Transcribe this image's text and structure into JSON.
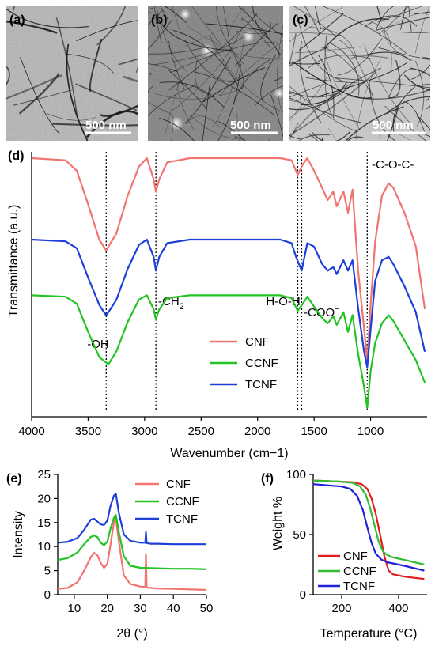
{
  "figure": {
    "panels": {
      "a": {
        "label": "(a)",
        "scale_bar": "500 nm"
      },
      "b": {
        "label": "(b)",
        "scale_bar": "500 nm"
      },
      "c": {
        "label": "(c)",
        "scale_bar": "500 nm"
      },
      "d": {
        "label": "(d)"
      },
      "e": {
        "label": "(e)"
      },
      "f": {
        "label": "(f)"
      }
    },
    "colors": {
      "CNF": "#f07470",
      "CCNF": "#22c322",
      "TCNF": "#1e3fd8",
      "CNF_f": "#e51c1c",
      "CCNF_f": "#33bb33",
      "TCNF_f": "#2020dd"
    }
  },
  "chart_data": [
    {
      "type": "line",
      "panel": "d",
      "title": "",
      "xlabel": "Wavenumber (cm−1)",
      "ylabel": "Transmittance (a.u.)",
      "xlim": [
        4000,
        500
      ],
      "x_reversed": true,
      "xticks": [
        "4000",
        "3500",
        "3000",
        "2500",
        "2000",
        "1500",
        "1000"
      ],
      "legend": [
        "CNF",
        "CCNF",
        "TCNF"
      ],
      "legend_position": "bottom-center",
      "markers": [
        {
          "x": 3340,
          "label": "-OH"
        },
        {
          "x": 2900,
          "label": "-CH",
          "sub": "2"
        },
        {
          "x": 1645,
          "label": "H-O-H"
        },
        {
          "x": 1610,
          "label": "-COO",
          "sup": "−"
        },
        {
          "x": 1030,
          "label": "-C-O-C-"
        }
      ],
      "series": [
        {
          "name": "CNF",
          "x": [
            4000,
            3700,
            3600,
            3500,
            3400,
            3340,
            3250,
            3150,
            3050,
            2980,
            2920,
            2900,
            2870,
            2800,
            2600,
            2200,
            1800,
            1700,
            1645,
            1600,
            1560,
            1500,
            1430,
            1380,
            1330,
            1300,
            1240,
            1200,
            1160,
            1110,
            1060,
            1030,
            1000,
            960,
            900,
            840,
            800,
            700,
            600,
            520
          ],
          "y": [
            0.0,
            0.01,
            0.06,
            0.22,
            0.39,
            0.44,
            0.36,
            0.18,
            0.04,
            0.0,
            0.1,
            0.16,
            0.1,
            0.02,
            0.0,
            0.0,
            0.0,
            0.01,
            0.08,
            0.03,
            0.0,
            0.06,
            0.14,
            0.2,
            0.16,
            0.23,
            0.16,
            0.26,
            0.15,
            0.54,
            0.8,
            0.97,
            0.7,
            0.4,
            0.18,
            0.12,
            0.14,
            0.26,
            0.42,
            0.72
          ]
        },
        {
          "name": "TCNF",
          "x": [
            4000,
            3700,
            3600,
            3500,
            3400,
            3340,
            3250,
            3150,
            3050,
            2980,
            2920,
            2900,
            2870,
            2800,
            2600,
            2200,
            1800,
            1700,
            1660,
            1610,
            1560,
            1500,
            1430,
            1380,
            1330,
            1300,
            1240,
            1200,
            1160,
            1110,
            1060,
            1030,
            1000,
            960,
            900,
            840,
            800,
            700,
            600,
            520
          ],
          "y": [
            0.28,
            0.29,
            0.33,
            0.5,
            0.66,
            0.72,
            0.63,
            0.45,
            0.31,
            0.28,
            0.38,
            0.46,
            0.38,
            0.3,
            0.28,
            0.28,
            0.28,
            0.3,
            0.38,
            0.46,
            0.3,
            0.32,
            0.42,
            0.46,
            0.44,
            0.48,
            0.4,
            0.46,
            0.4,
            0.68,
            0.92,
            1.02,
            0.8,
            0.52,
            0.4,
            0.38,
            0.42,
            0.55,
            0.7,
            0.93
          ]
        },
        {
          "name": "CCNF",
          "x": [
            4000,
            3700,
            3600,
            3500,
            3400,
            3320,
            3250,
            3150,
            3050,
            2980,
            2920,
            2900,
            2870,
            2800,
            2600,
            2200,
            1800,
            1700,
            1645,
            1600,
            1560,
            1500,
            1430,
            1380,
            1330,
            1300,
            1240,
            1200,
            1160,
            1110,
            1060,
            1030,
            1000,
            960,
            900,
            840,
            800,
            700,
            600,
            520
          ],
          "y": [
            0.48,
            0.49,
            0.54,
            0.74,
            0.92,
            0.97,
            0.88,
            0.67,
            0.51,
            0.48,
            0.58,
            0.65,
            0.58,
            0.5,
            0.48,
            0.48,
            0.48,
            0.5,
            0.59,
            0.54,
            0.49,
            0.56,
            0.64,
            0.68,
            0.63,
            0.69,
            0.6,
            0.74,
            0.62,
            0.9,
            1.12,
            1.28,
            1.02,
            0.82,
            0.68,
            0.62,
            0.66,
            0.8,
            0.94,
            1.1
          ]
        }
      ]
    },
    {
      "type": "line",
      "panel": "e",
      "title": "",
      "xlabel": "2θ (°)",
      "ylabel": "Intensity",
      "xlim": [
        5,
        50
      ],
      "ylim": [
        0,
        25
      ],
      "xticks": [
        10,
        20,
        30,
        40,
        50
      ],
      "yticks": [
        0,
        5,
        10,
        15,
        20,
        25
      ],
      "legend": [
        "CNF",
        "CCNF",
        "TCNF"
      ],
      "legend_position": "top-right",
      "series": [
        {
          "name": "CNF",
          "x": [
            5,
            8,
            11,
            13,
            15,
            16,
            17,
            18,
            19,
            20,
            21,
            22,
            22.6,
            23.5,
            25,
            27,
            30,
            31.5,
            31.7,
            31.9,
            32.2,
            33,
            35,
            40,
            45,
            50
          ],
          "y": [
            1.2,
            1.4,
            2.6,
            5.0,
            7.8,
            8.7,
            8.2,
            6.6,
            5.6,
            6.4,
            10.5,
            15.0,
            16.0,
            11.0,
            4.0,
            2.2,
            1.7,
            1.6,
            8.5,
            1.6,
            1.5,
            1.4,
            1.3,
            1.2,
            1.1,
            1.0
          ]
        },
        {
          "name": "CCNF",
          "x": [
            5,
            8,
            11,
            13,
            15,
            16,
            17,
            18,
            19,
            20,
            21,
            22,
            22.6,
            23.5,
            25,
            27,
            30,
            35,
            40,
            45,
            50
          ],
          "y": [
            7.2,
            7.6,
            8.8,
            10.5,
            12.0,
            12.3,
            12.0,
            10.8,
            10.3,
            11.0,
            13.8,
            16.0,
            16.6,
            13.0,
            8.0,
            6.0,
            5.6,
            5.5,
            5.4,
            5.4,
            5.3
          ]
        },
        {
          "name": "TCNF",
          "x": [
            5,
            8,
            11,
            13,
            15,
            16,
            17,
            18,
            19,
            20,
            21,
            22,
            22.6,
            23.5,
            25,
            27,
            30,
            31.5,
            31.7,
            31.9,
            32.2,
            33,
            35,
            40,
            45,
            50
          ],
          "y": [
            10.8,
            11.0,
            11.8,
            13.5,
            15.6,
            15.8,
            15.2,
            14.6,
            14.5,
            15.4,
            18.5,
            20.6,
            21.0,
            17.0,
            12.5,
            11.2,
            10.8,
            10.8,
            13.0,
            10.7,
            10.7,
            10.6,
            10.6,
            10.5,
            10.5,
            10.5
          ]
        }
      ]
    },
    {
      "type": "line",
      "panel": "f",
      "title": "",
      "xlabel": "Temperature (°C)",
      "ylabel": "Weight %",
      "xlim": [
        100,
        500
      ],
      "ylim": [
        0,
        100
      ],
      "xticks": [
        200,
        400
      ],
      "yticks": [
        0,
        50,
        100
      ],
      "legend": [
        "CNF",
        "CCNF",
        "TCNF"
      ],
      "legend_position": "bottom-left",
      "series": [
        {
          "name": "CNF",
          "x": [
            100,
            150,
            200,
            240,
            270,
            290,
            305,
            320,
            335,
            350,
            365,
            380,
            420,
            490
          ],
          "y": [
            95,
            94.5,
            94,
            93.5,
            92,
            88,
            80,
            67,
            50,
            32,
            20,
            17,
            15,
            13
          ]
        },
        {
          "name": "CCNF",
          "x": [
            100,
            150,
            200,
            240,
            265,
            285,
            300,
            315,
            330,
            345,
            360,
            380,
            420,
            490
          ],
          "y": [
            95,
            94.5,
            94,
            93,
            90,
            83,
            72,
            58,
            44,
            36,
            33,
            31,
            29,
            25
          ]
        },
        {
          "name": "TCNF",
          "x": [
            100,
            150,
            200,
            230,
            255,
            275,
            290,
            305,
            320,
            340,
            360,
            380,
            420,
            490
          ],
          "y": [
            92,
            91,
            90,
            88,
            82,
            70,
            56,
            43,
            34,
            29,
            27,
            26,
            24,
            20
          ]
        }
      ]
    }
  ]
}
